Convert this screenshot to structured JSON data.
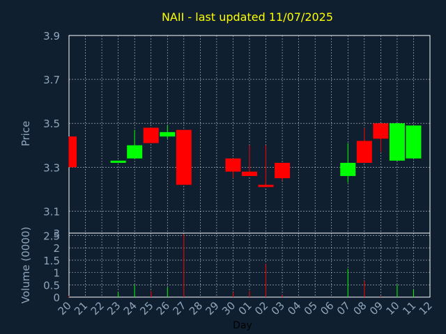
{
  "chart_data": {
    "type": "candlestick",
    "title": "NAII - last updated 11/07/2025",
    "xlabel": "Day",
    "x_tick_labels": [
      "20",
      "21",
      "22",
      "23",
      "24",
      "25",
      "26",
      "27",
      "28",
      "29",
      "30",
      "01",
      "02",
      "03",
      "04",
      "05",
      "06",
      "07",
      "08",
      "09",
      "10",
      "11",
      "12"
    ],
    "price_panel": {
      "ylabel": "Price",
      "ylim": [
        3.0,
        3.9
      ],
      "y_ticks": [
        "3.9",
        "3.7",
        "3.5",
        "3.3",
        "3.1",
        "3"
      ],
      "y_tick_values": [
        3.9,
        3.7,
        3.5,
        3.3,
        3.1,
        3.0
      ]
    },
    "volume_panel": {
      "ylabel": "Volume (0000)",
      "ylim": [
        0,
        2.6
      ],
      "y_ticks": [
        "2.5",
        "2",
        "1.5",
        "1",
        "0.5",
        "0"
      ],
      "y_tick_values": [
        2.5,
        2.0,
        1.5,
        1.0,
        0.5,
        0.0
      ]
    },
    "candles": [
      {
        "day": "20",
        "open": 3.44,
        "high": 3.44,
        "low": 3.3,
        "close": 3.3,
        "volume": 0.05
      },
      {
        "day": "23",
        "open": 3.32,
        "high": 3.33,
        "low": 3.32,
        "close": 3.33,
        "volume": 0.2
      },
      {
        "day": "24",
        "open": 3.34,
        "high": 3.47,
        "low": 3.34,
        "close": 3.4,
        "volume": 0.5
      },
      {
        "day": "25",
        "open": 3.48,
        "high": 3.48,
        "low": 3.41,
        "close": 3.41,
        "volume": 0.25
      },
      {
        "day": "26",
        "open": 3.44,
        "high": 3.49,
        "low": 3.43,
        "close": 3.46,
        "volume": 0.4
      },
      {
        "day": "27",
        "open": 3.47,
        "high": 3.47,
        "low": 3.22,
        "close": 3.22,
        "volume": 2.55
      },
      {
        "day": "30",
        "open": 3.34,
        "high": 3.34,
        "low": 3.25,
        "close": 3.28,
        "volume": 0.2
      },
      {
        "day": "01",
        "open": 3.28,
        "high": 3.4,
        "low": 3.26,
        "close": 3.26,
        "volume": 0.25
      },
      {
        "day": "02",
        "open": 3.22,
        "high": 3.4,
        "low": 3.21,
        "close": 3.21,
        "volume": 1.35
      },
      {
        "day": "03",
        "open": 3.32,
        "high": 3.32,
        "low": 3.24,
        "close": 3.25,
        "volume": 0.1
      },
      {
        "day": "07",
        "open": 3.26,
        "high": 3.41,
        "low": 3.23,
        "close": 3.32,
        "volume": 1.15
      },
      {
        "day": "08",
        "open": 3.42,
        "high": 3.48,
        "low": 3.32,
        "close": 3.32,
        "volume": 0.65
      },
      {
        "day": "09",
        "open": 3.5,
        "high": 3.5,
        "low": 3.37,
        "close": 3.43,
        "volume": 0.05
      },
      {
        "day": "10",
        "open": 3.33,
        "high": 3.5,
        "low": 3.33,
        "close": 3.5,
        "volume": 0.5
      },
      {
        "day": "11",
        "open": 3.34,
        "high": 3.49,
        "low": 3.34,
        "close": 3.49,
        "volume": 0.3
      }
    ],
    "colors": {
      "up": "#00ff00",
      "down": "#ff0000",
      "background": "#0f1f30",
      "title": "#ffff00",
      "axis_text": "#8fa6bc",
      "grid": "#ffffff"
    },
    "grid": true
  }
}
